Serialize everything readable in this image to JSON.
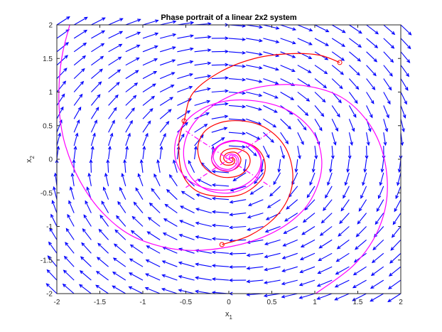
{
  "chart_data": {
    "type": "phase-portrait",
    "title": "Phase portrait of a linear 2x2 system",
    "xlabel": "x",
    "xlabel_sub": "1",
    "ylabel": "x",
    "ylabel_sub": "2",
    "xlim": [
      -2,
      2
    ],
    "ylim": [
      -2,
      2
    ],
    "xticks": [
      "-2",
      "-1.5",
      "-1",
      "-0.5",
      "0",
      "0.5",
      "1",
      "1.5",
      "2"
    ],
    "yticks": [
      "-2",
      "-1.5",
      "-1",
      "-0.5",
      "0",
      "0.5",
      "1",
      "1.5",
      "2"
    ],
    "grid": false,
    "vector_field": {
      "color": "#0000ff",
      "grid_spacing": 0.2,
      "matrix": [
        [
          -0.1,
          1.0
        ],
        [
          -1.0,
          -0.1
        ]
      ]
    },
    "series": [
      {
        "style": "solid",
        "color": "#ff0000",
        "points": [
          [
            1.29,
            1.44
          ],
          [
            1.05,
            1.55
          ],
          [
            0.7,
            1.57
          ],
          [
            0.3,
            1.5
          ],
          [
            -0.1,
            1.3
          ],
          [
            -0.42,
            0.98
          ],
          [
            -0.52,
            0.57
          ],
          [
            -0.58,
            0.25
          ],
          [
            -0.55,
            -0.18
          ],
          [
            -0.4,
            -0.45
          ],
          [
            -0.15,
            -0.55
          ],
          [
            0.15,
            -0.52
          ],
          [
            0.38,
            -0.3
          ],
          [
            0.42,
            -0.05
          ],
          [
            0.32,
            0.17
          ],
          [
            0.1,
            0.27
          ],
          [
            -0.12,
            0.2
          ],
          [
            -0.2,
            0.02
          ],
          [
            -0.15,
            -0.12
          ],
          [
            -0.02,
            -0.18
          ],
          [
            0.1,
            -0.12
          ],
          [
            0.14,
            0.0
          ],
          [
            0.08,
            0.1
          ],
          [
            -0.02,
            0.09
          ],
          [
            -0.06,
            0.02
          ],
          [
            -0.03,
            -0.04
          ],
          [
            0.02,
            -0.05
          ],
          [
            0.05,
            -0.02
          ],
          [
            0.03,
            0.02
          ],
          [
            0.0,
            0.0
          ]
        ]
      },
      {
        "style": "solid",
        "color": "#ff0000",
        "points": [
          [
            -0.08,
            -1.27
          ],
          [
            0.25,
            -1.13
          ],
          [
            0.55,
            -0.85
          ],
          [
            0.72,
            -0.48
          ],
          [
            0.73,
            -0.08
          ],
          [
            0.6,
            0.28
          ],
          [
            0.34,
            0.52
          ],
          [
            0.0,
            0.57
          ],
          [
            -0.26,
            0.44
          ],
          [
            -0.36,
            0.18
          ],
          [
            -0.3,
            -0.1
          ],
          [
            -0.1,
            -0.26
          ],
          [
            0.12,
            -0.24
          ],
          [
            0.24,
            -0.08
          ],
          [
            0.22,
            0.08
          ],
          [
            0.08,
            0.16
          ],
          [
            -0.06,
            0.12
          ],
          [
            -0.1,
            0.0
          ],
          [
            -0.05,
            -0.08
          ],
          [
            0.04,
            -0.08
          ],
          [
            0.07,
            -0.02
          ],
          [
            0.04,
            0.03
          ],
          [
            0.0,
            0.0
          ]
        ]
      },
      {
        "style": "solid",
        "color": "#ff00ff",
        "points": [
          [
            -1.85,
            2.0
          ],
          [
            -1.93,
            1.6
          ],
          [
            -1.97,
            1.2
          ],
          [
            -1.97,
            0.7
          ],
          [
            -1.9,
            0.2
          ],
          [
            -1.72,
            -0.35
          ],
          [
            -1.45,
            -0.82
          ],
          [
            -1.08,
            -1.17
          ],
          [
            -0.55,
            -1.35
          ],
          [
            0.02,
            -1.3
          ],
          [
            0.5,
            -1.1
          ],
          [
            0.85,
            -0.78
          ],
          [
            1.03,
            -0.4
          ],
          [
            1.08,
            0.0
          ],
          [
            0.98,
            0.4
          ],
          [
            0.7,
            0.72
          ],
          [
            0.3,
            0.87
          ],
          [
            -0.1,
            0.85
          ],
          [
            -0.42,
            0.66
          ],
          [
            -0.6,
            0.35
          ],
          [
            -0.62,
            0.0
          ],
          [
            -0.48,
            -0.3
          ],
          [
            -0.2,
            -0.45
          ],
          [
            0.12,
            -0.42
          ],
          [
            0.33,
            -0.22
          ],
          [
            0.37,
            0.04
          ],
          [
            0.25,
            0.22
          ],
          [
            0.04,
            0.28
          ],
          [
            -0.14,
            0.18
          ],
          [
            -0.2,
            0.0
          ],
          [
            -0.12,
            -0.14
          ],
          [
            0.02,
            -0.17
          ],
          [
            0.11,
            -0.08
          ],
          [
            0.1,
            0.04
          ],
          [
            0.02,
            0.08
          ],
          [
            -0.04,
            0.03
          ],
          [
            0.0,
            0.0
          ]
        ]
      },
      {
        "style": "solid",
        "color": "#ff00ff",
        "points": [
          [
            1.01,
            -2.0
          ],
          [
            1.45,
            -1.58
          ],
          [
            1.72,
            -1.1
          ],
          [
            1.84,
            -0.55
          ],
          [
            1.8,
            0.05
          ],
          [
            1.62,
            0.55
          ],
          [
            1.3,
            0.93
          ],
          [
            0.85,
            1.1
          ],
          [
            0.38,
            1.08
          ],
          [
            -0.05,
            0.9
          ],
          [
            -0.38,
            0.58
          ],
          [
            -0.52,
            0.2
          ],
          [
            -0.48,
            -0.18
          ],
          [
            -0.28,
            -0.44
          ],
          [
            0.02,
            -0.5
          ],
          [
            0.28,
            -0.35
          ],
          [
            0.38,
            -0.08
          ],
          [
            0.3,
            0.16
          ],
          [
            0.1,
            0.27
          ],
          [
            -0.1,
            0.21
          ],
          [
            -0.18,
            0.04
          ],
          [
            -0.12,
            -0.11
          ],
          [
            0.0,
            -0.15
          ],
          [
            0.09,
            -0.07
          ],
          [
            0.08,
            0.03
          ],
          [
            0.02,
            0.06
          ],
          [
            0.0,
            0.0
          ]
        ]
      },
      {
        "style": "dashdot",
        "color": "#ff00ff",
        "points": [
          [
            -0.5,
            -0.42
          ],
          [
            0.5,
            0.42
          ]
        ]
      },
      {
        "style": "dashdot",
        "color": "#ff00ff",
        "points": [
          [
            -0.5,
            0.42
          ],
          [
            0.5,
            -0.42
          ]
        ]
      }
    ],
    "markers": {
      "color": "#ff0000",
      "points": [
        [
          1.29,
          1.44
        ],
        [
          -0.52,
          0.57
        ],
        [
          -0.08,
          -1.27
        ]
      ]
    }
  }
}
